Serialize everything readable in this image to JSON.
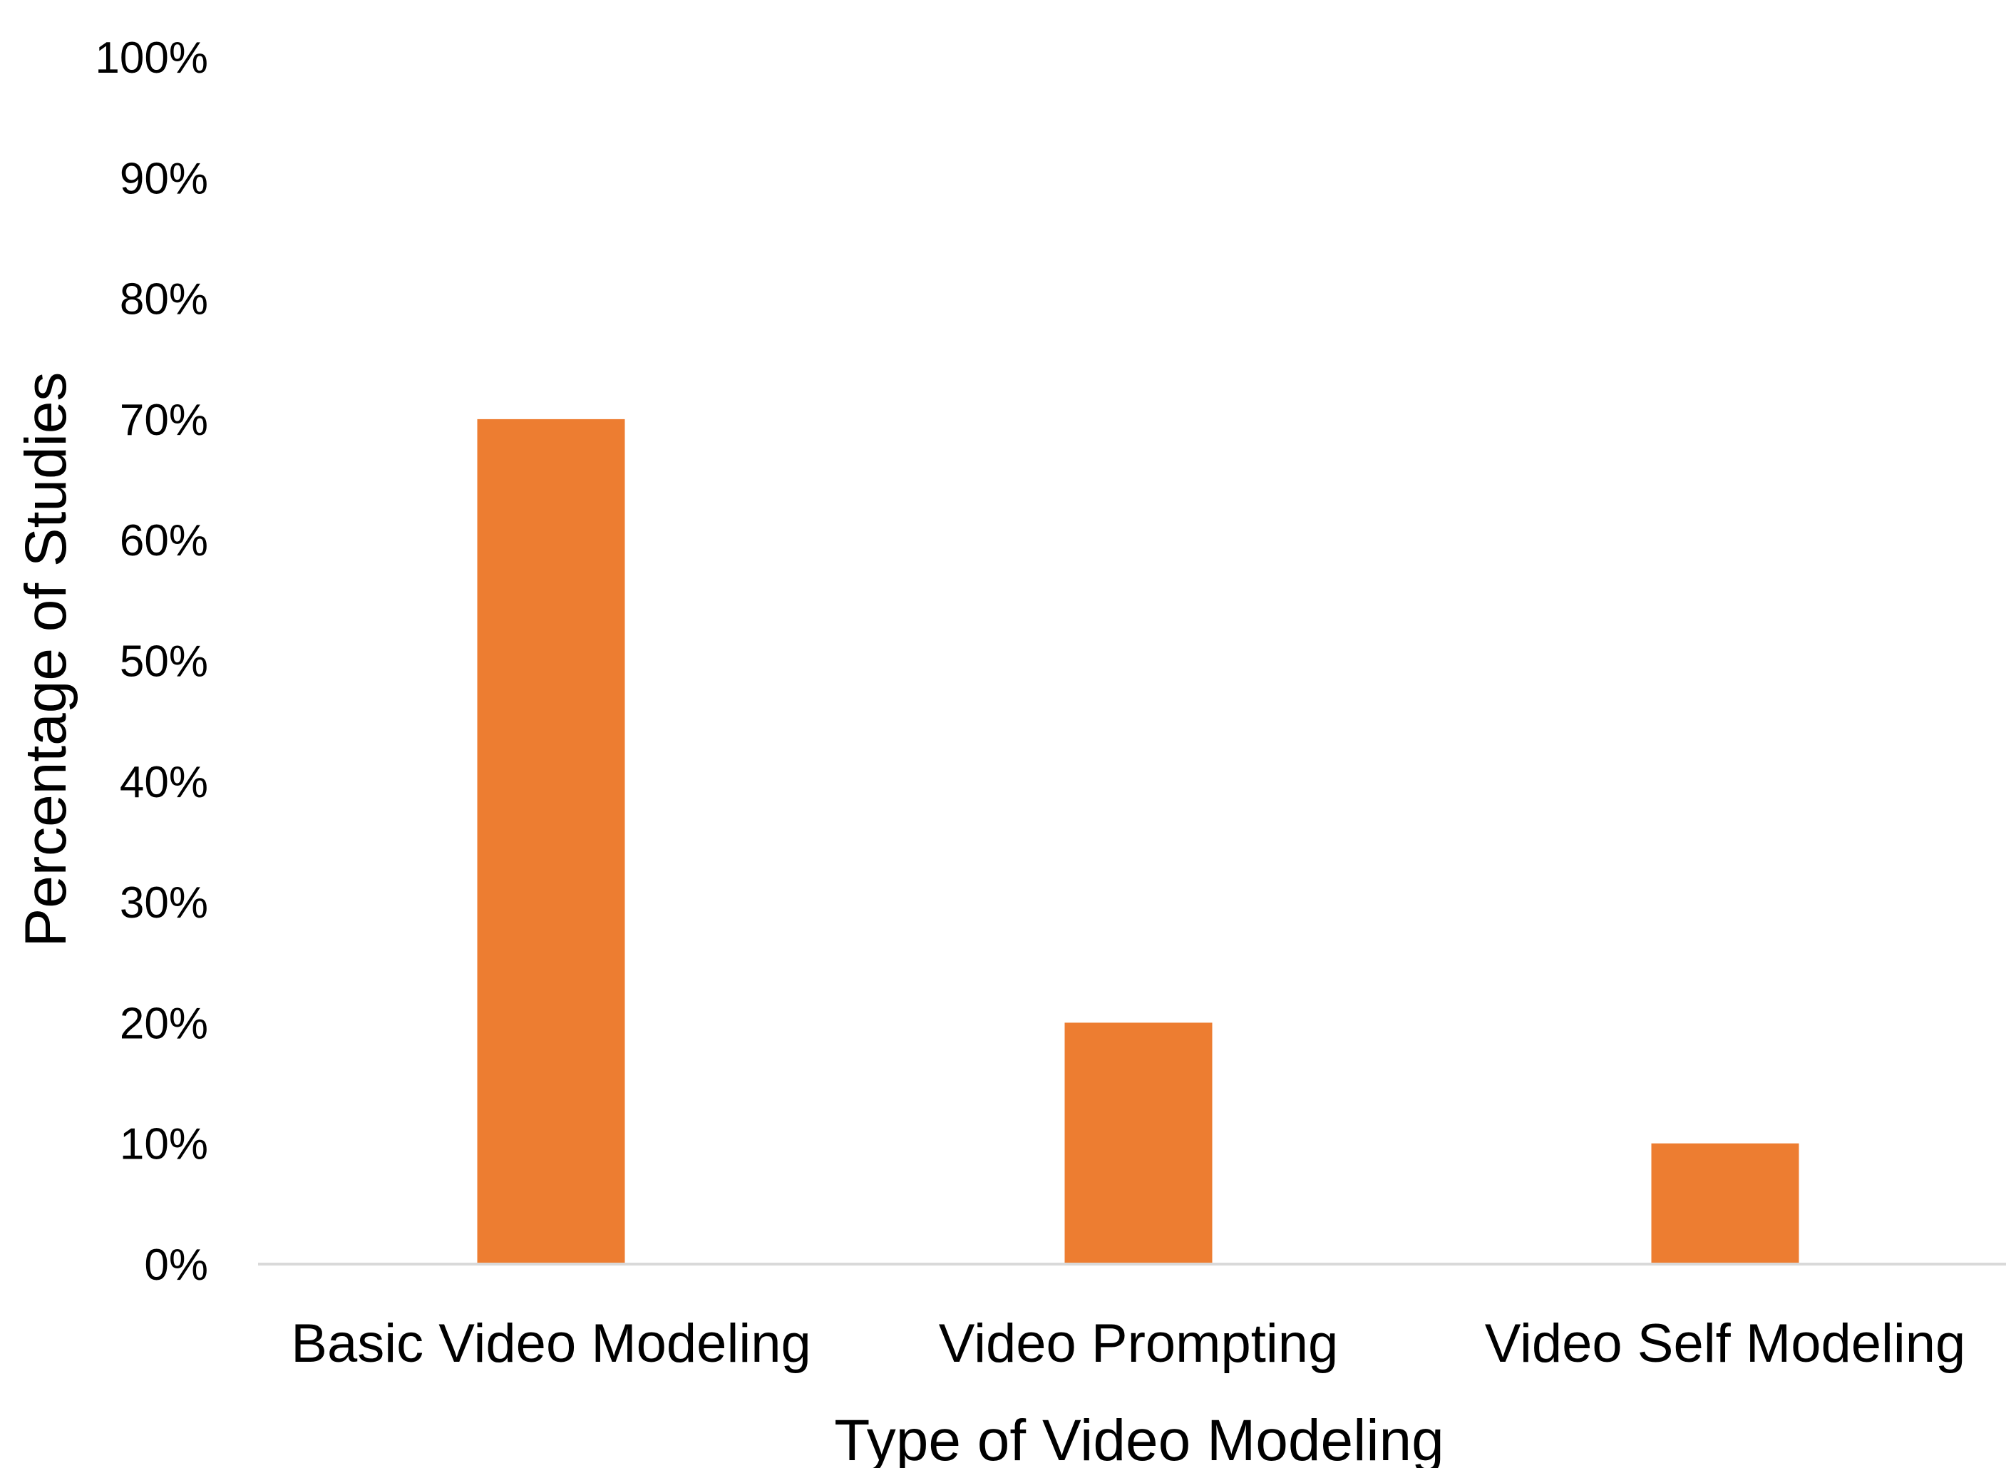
{
  "chart_data": {
    "type": "bar",
    "categories": [
      "Basic Video Modeling",
      "Video Prompting",
      "Video Self Modeling"
    ],
    "series": [
      {
        "values": [
          70,
          20,
          10
        ]
      }
    ],
    "title": "",
    "xlabel": "Type of Video Modeling",
    "ylabel": "Percentage of Studies",
    "ylim": [
      0,
      100
    ],
    "yticks": [
      "0%",
      "10%",
      "20%",
      "30%",
      "40%",
      "50%",
      "60%",
      "70%",
      "80%",
      "90%",
      "100%"
    ],
    "grid": false,
    "legend": "none",
    "colors": {
      "bar": "#ED7D31",
      "axis": "#D9D9D9",
      "text": "#000000"
    }
  }
}
